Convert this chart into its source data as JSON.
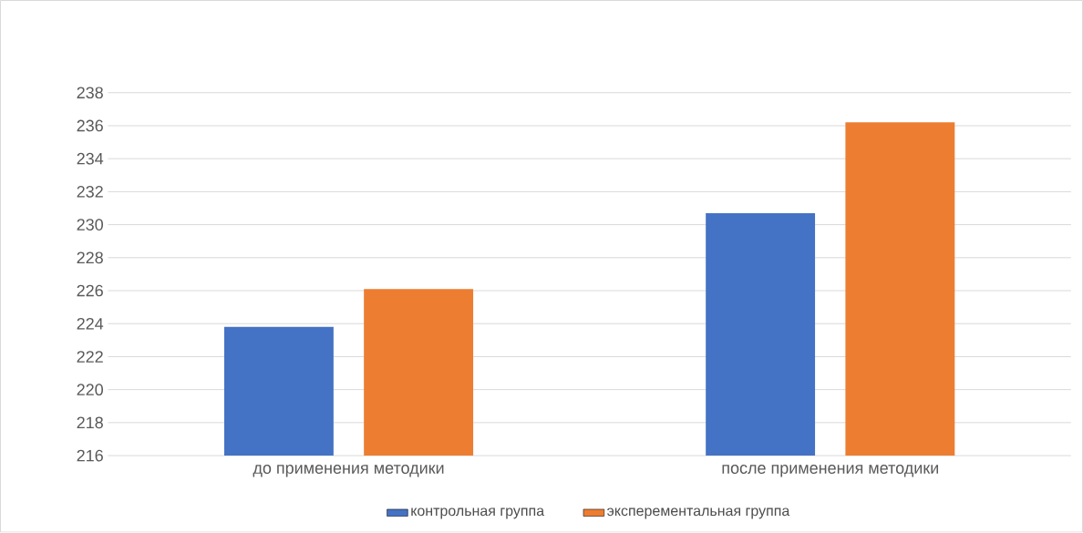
{
  "chart_data": {
    "type": "bar",
    "categories": [
      "до применения методики",
      "после применения методики"
    ],
    "series": [
      {
        "name": "контрольная группа",
        "color": "#4472c4",
        "values": [
          223.8,
          230.7
        ]
      },
      {
        "name": "эксперементальная группа",
        "color": "#ed7d31",
        "values": [
          226.1,
          236.2
        ]
      }
    ],
    "ylim": [
      216,
      238
    ],
    "yticks": [
      216,
      218,
      220,
      222,
      224,
      226,
      228,
      230,
      232,
      234,
      236,
      238
    ],
    "grid": "y",
    "legend": "bottom"
  }
}
